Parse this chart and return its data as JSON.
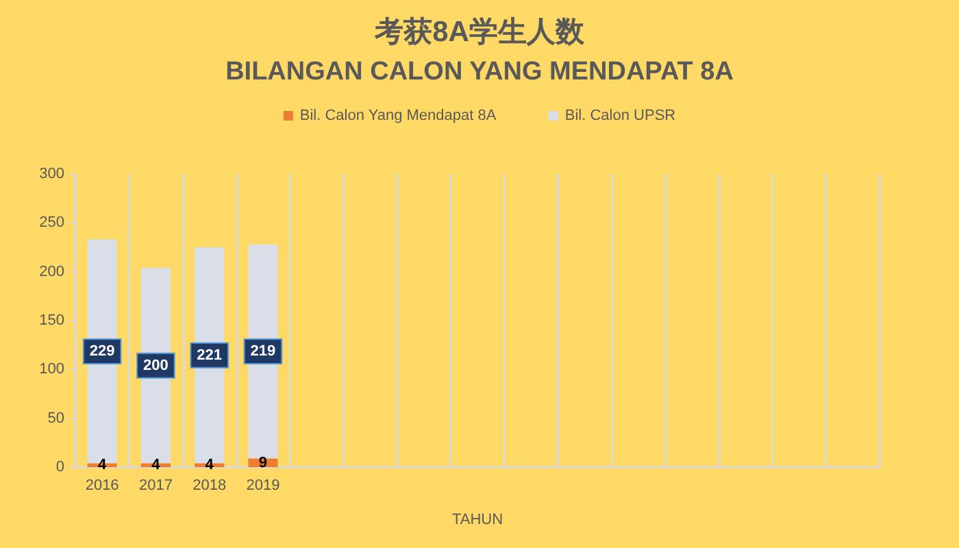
{
  "chart_data": {
    "type": "bar",
    "title": "考获8A学生人数",
    "subtitle": "BILANGAN CALON YANG MENDAPAT 8A",
    "xlabel": "TAHUN",
    "categories": [
      "2016",
      "2017",
      "2018",
      "2019",
      null,
      null,
      null,
      null,
      null,
      null,
      null,
      null,
      null,
      null,
      null
    ],
    "series": [
      {
        "name": "Bil. Calon Yang Mendapat 8A",
        "color": "#ed7d31",
        "values": [
          4,
          4,
          4,
          9,
          null,
          null,
          null,
          null,
          null,
          null,
          null,
          null,
          null,
          null,
          null
        ]
      },
      {
        "name": "Bil. Calon UPSR",
        "color": "#d9dee9",
        "values": [
          229,
          200,
          221,
          219,
          null,
          null,
          null,
          null,
          null,
          null,
          null,
          null,
          null,
          null,
          null
        ]
      }
    ],
    "stacked": true,
    "ylim": [
      0,
      300
    ],
    "yticks": [
      0,
      50,
      100,
      150,
      200,
      250,
      300
    ],
    "grid": "x",
    "legend": "top",
    "data_labels": true
  }
}
